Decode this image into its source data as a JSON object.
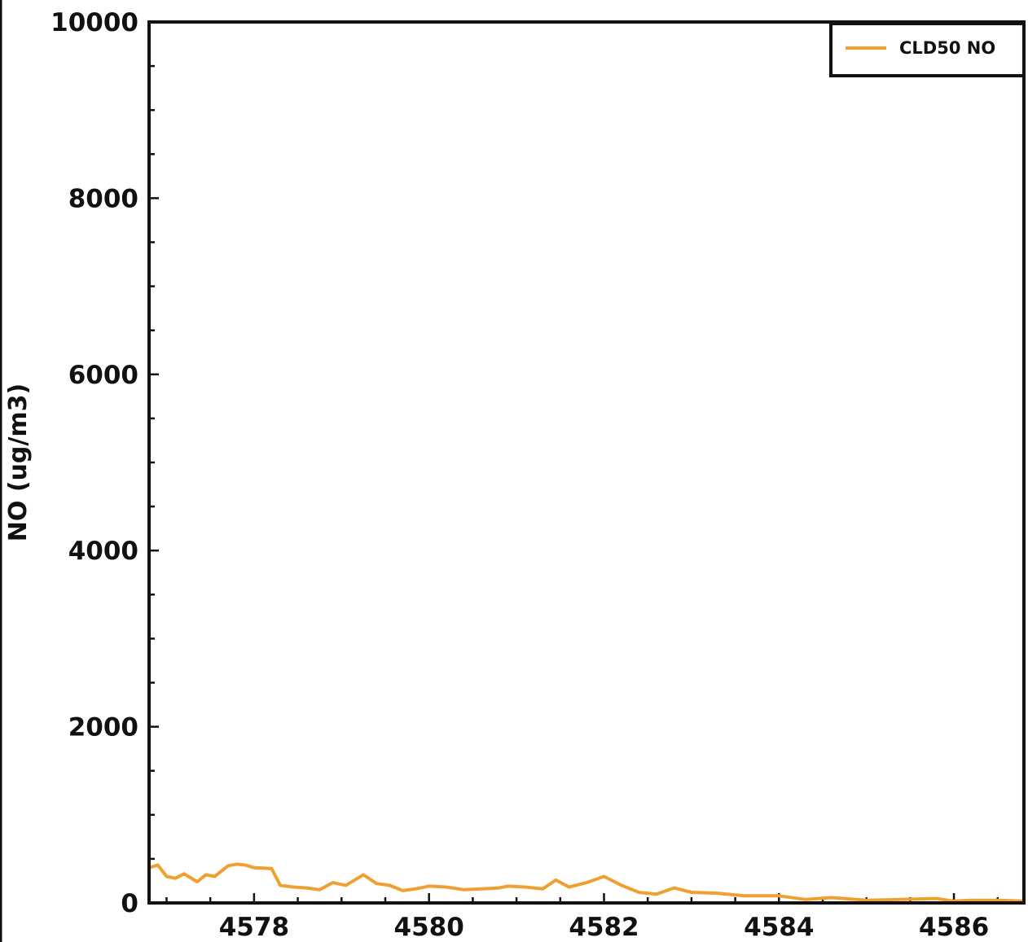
{
  "chart_data": {
    "type": "line",
    "title": "",
    "xlabel": "",
    "ylabel": "NO (ug/m3)",
    "xlim": [
      4576.8,
      4586.8
    ],
    "ylim": [
      0,
      10000
    ],
    "x_ticks": [
      4578,
      4580,
      4582,
      4584,
      4586
    ],
    "y_ticks": [
      0,
      2000,
      4000,
      6000,
      8000,
      10000
    ],
    "grid": false,
    "legend": {
      "placement": "top-right"
    },
    "series": [
      {
        "name": "CLD50 NO",
        "color": "#f0a030",
        "x": [
          4576.8,
          4576.9,
          4577.0,
          4577.1,
          4577.2,
          4577.35,
          4577.45,
          4577.55,
          4577.7,
          4577.8,
          4577.9,
          4578.0,
          4578.2,
          4578.3,
          4578.45,
          4578.6,
          4578.75,
          4578.9,
          4579.05,
          4579.25,
          4579.4,
          4579.55,
          4579.7,
          4579.85,
          4580.0,
          4580.2,
          4580.4,
          4580.6,
          4580.8,
          4580.9,
          4581.1,
          4581.3,
          4581.45,
          4581.6,
          4581.8,
          4582.0,
          4582.2,
          4582.4,
          4582.6,
          4582.8,
          4583.0,
          4583.3,
          4583.6,
          4584.0,
          4584.3,
          4584.6,
          4585.0,
          4585.4,
          4585.8,
          4586.0,
          4586.2,
          4586.5,
          4586.8
        ],
        "y": [
          400,
          430,
          300,
          280,
          330,
          240,
          320,
          300,
          420,
          440,
          430,
          400,
          390,
          200,
          180,
          170,
          150,
          230,
          200,
          320,
          220,
          200,
          140,
          160,
          190,
          180,
          150,
          160,
          170,
          190,
          180,
          160,
          260,
          180,
          230,
          300,
          200,
          120,
          100,
          170,
          120,
          110,
          80,
          80,
          40,
          60,
          30,
          40,
          50,
          20,
          30,
          30,
          20
        ]
      }
    ]
  }
}
